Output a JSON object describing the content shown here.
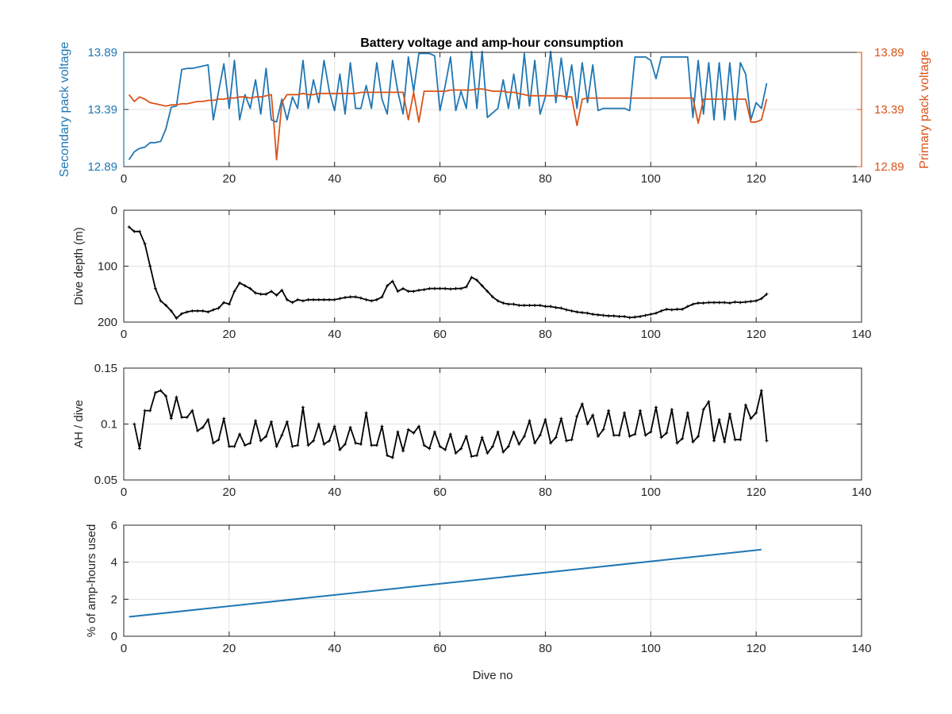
{
  "title": "Battery voltage and amp-hour consumption",
  "colors": {
    "blue": "#1f77b4",
    "orange": "#d95319",
    "black": "#000000",
    "grid": "#e1e1e1",
    "axis": "#262626"
  },
  "chart_data": [
    {
      "type": "line",
      "title": "Battery voltage and amp-hour consumption",
      "xlabel": "",
      "xlim": [
        0,
        140
      ],
      "xticks": [
        0,
        20,
        40,
        60,
        80,
        100,
        120,
        140
      ],
      "ylabel_left": "Secondary pack voltage",
      "ylabel_right": "Primary pack voltage",
      "ylim": [
        12.89,
        13.89
      ],
      "yticks": [
        12.89,
        13.39,
        13.89
      ],
      "grid": true,
      "series": [
        {
          "name": "Secondary pack voltage",
          "axis": "left",
          "color": "#1f77b4",
          "x": [
            1,
            2,
            3,
            4,
            5,
            6,
            7,
            8,
            9,
            10,
            11,
            12,
            13,
            14,
            15,
            16,
            17,
            18,
            19,
            20,
            21,
            22,
            23,
            24,
            25,
            26,
            27,
            28,
            29,
            30,
            31,
            32,
            33,
            34,
            35,
            36,
            37,
            38,
            39,
            40,
            41,
            42,
            43,
            44,
            45,
            46,
            47,
            48,
            49,
            50,
            51,
            52,
            53,
            54,
            55,
            56,
            57,
            58,
            59,
            60,
            61,
            62,
            63,
            64,
            65,
            66,
            67,
            68,
            69,
            70,
            71,
            72,
            73,
            74,
            75,
            76,
            77,
            78,
            79,
            80,
            81,
            82,
            83,
            84,
            85,
            86,
            87,
            88,
            89,
            90,
            91,
            92,
            93,
            94,
            95,
            96,
            97,
            98,
            99,
            100,
            101,
            102,
            103,
            104,
            105,
            106,
            107,
            108,
            109,
            110,
            111,
            112,
            113,
            114,
            115,
            116,
            117,
            118,
            119,
            120,
            121,
            122
          ],
          "y": [
            12.95,
            13.02,
            13.05,
            13.06,
            13.1,
            13.1,
            13.11,
            13.22,
            13.41,
            13.42,
            13.74,
            13.75,
            13.75,
            13.76,
            13.77,
            13.78,
            13.3,
            13.55,
            13.79,
            13.4,
            13.82,
            13.3,
            13.52,
            13.4,
            13.65,
            13.35,
            13.75,
            13.3,
            13.28,
            13.48,
            13.3,
            13.5,
            13.4,
            13.82,
            13.4,
            13.65,
            13.45,
            13.82,
            13.55,
            13.38,
            13.7,
            13.35,
            13.8,
            13.4,
            13.4,
            13.6,
            13.4,
            13.8,
            13.48,
            13.35,
            13.82,
            13.55,
            13.35,
            13.85,
            13.55,
            13.88,
            13.88,
            13.88,
            13.86,
            13.38,
            13.6,
            13.85,
            13.38,
            13.55,
            13.4,
            13.9,
            13.4,
            13.9,
            13.32,
            13.36,
            13.4,
            13.65,
            13.4,
            13.7,
            13.4,
            13.88,
            13.42,
            13.82,
            13.35,
            13.5,
            13.9,
            13.45,
            13.84,
            13.48,
            13.78,
            13.4,
            13.8,
            13.45,
            13.78,
            13.38,
            13.4,
            13.4,
            13.4,
            13.4,
            13.4,
            13.38,
            13.85,
            13.85,
            13.85,
            13.82,
            13.66,
            13.85,
            13.85,
            13.85,
            13.85,
            13.85,
            13.85,
            13.32,
            13.82,
            13.35,
            13.8,
            13.3,
            13.8,
            13.3,
            13.8,
            13.3,
            13.8,
            13.7,
            13.3,
            13.45,
            13.4,
            13.62
          ]
        },
        {
          "name": "Primary pack voltage",
          "axis": "right",
          "color": "#d95319",
          "x": [
            1,
            2,
            3,
            4,
            5,
            6,
            7,
            8,
            9,
            10,
            11,
            12,
            13,
            14,
            15,
            16,
            17,
            18,
            19,
            20,
            21,
            22,
            23,
            24,
            25,
            26,
            27,
            28,
            28.5,
            29,
            30,
            31,
            32,
            33,
            34,
            35,
            36,
            37,
            38,
            39,
            40,
            41,
            42,
            43,
            44,
            45,
            46,
            47,
            48,
            49,
            50,
            51,
            52,
            53,
            54,
            55,
            56,
            57,
            58,
            59,
            60,
            61,
            62,
            63,
            64,
            65,
            66,
            67,
            68,
            69,
            70,
            71,
            72,
            73,
            74,
            75,
            76,
            77,
            78,
            79,
            80,
            81,
            82,
            83,
            84,
            85,
            86,
            87,
            88,
            89,
            90,
            91,
            92,
            93,
            94,
            95,
            96,
            97,
            98,
            99,
            100,
            101,
            102,
            103,
            104,
            105,
            106,
            107,
            108,
            109,
            110,
            111,
            112,
            113,
            114,
            115,
            116,
            117,
            118,
            119,
            120,
            121,
            122
          ],
          "y": [
            13.52,
            13.46,
            13.5,
            13.48,
            13.45,
            13.44,
            13.43,
            13.42,
            13.43,
            13.43,
            13.44,
            13.44,
            13.45,
            13.46,
            13.46,
            13.47,
            13.47,
            13.48,
            13.48,
            13.49,
            13.49,
            13.5,
            13.5,
            13.49,
            13.5,
            13.5,
            13.51,
            13.52,
            13.26,
            12.95,
            13.45,
            13.52,
            13.52,
            13.52,
            13.53,
            13.52,
            13.52,
            13.53,
            13.53,
            13.53,
            13.53,
            13.53,
            13.53,
            13.53,
            13.53,
            13.54,
            13.54,
            13.54,
            13.54,
            13.54,
            13.54,
            13.54,
            13.54,
            13.54,
            13.3,
            13.54,
            13.28,
            13.55,
            13.55,
            13.55,
            13.55,
            13.55,
            13.56,
            13.56,
            13.56,
            13.56,
            13.56,
            13.57,
            13.57,
            13.56,
            13.55,
            13.55,
            13.55,
            13.54,
            13.54,
            13.53,
            13.52,
            13.51,
            13.51,
            13.51,
            13.51,
            13.51,
            13.51,
            13.51,
            13.5,
            13.5,
            13.25,
            13.48,
            13.49,
            13.49,
            13.49,
            13.49,
            13.49,
            13.49,
            13.49,
            13.49,
            13.49,
            13.49,
            13.49,
            13.49,
            13.49,
            13.49,
            13.49,
            13.49,
            13.49,
            13.49,
            13.49,
            13.49,
            13.49,
            13.27,
            13.48,
            13.48,
            13.48,
            13.48,
            13.48,
            13.48,
            13.48,
            13.48,
            13.48,
            13.28,
            13.28,
            13.3,
            13.48
          ]
        }
      ]
    },
    {
      "type": "line",
      "xlabel": "",
      "ylabel": "Dive depth (m)",
      "xlim": [
        0,
        140
      ],
      "xticks": [
        0,
        20,
        40,
        60,
        80,
        100,
        120,
        140
      ],
      "ylim": [
        0,
        200
      ],
      "yticks": [
        0,
        100,
        200
      ],
      "y_reversed": true,
      "grid": true,
      "series": [
        {
          "color": "#000000",
          "markers": true,
          "x": [
            1,
            2,
            3,
            4,
            5,
            6,
            7,
            8,
            9,
            10,
            11,
            12,
            13,
            14,
            15,
            16,
            17,
            18,
            19,
            20,
            21,
            22,
            23,
            24,
            25,
            26,
            27,
            28,
            29,
            30,
            31,
            32,
            33,
            34,
            35,
            36,
            37,
            38,
            39,
            40,
            41,
            42,
            43,
            44,
            45,
            46,
            47,
            48,
            49,
            50,
            51,
            52,
            53,
            54,
            55,
            56,
            57,
            58,
            59,
            60,
            61,
            62,
            63,
            64,
            65,
            66,
            67,
            68,
            69,
            70,
            71,
            72,
            73,
            74,
            75,
            76,
            77,
            78,
            79,
            80,
            81,
            82,
            83,
            84,
            85,
            86,
            87,
            88,
            89,
            90,
            91,
            92,
            93,
            94,
            95,
            96,
            97,
            98,
            99,
            100,
            101,
            102,
            103,
            104,
            105,
            106,
            107,
            108,
            109,
            110,
            111,
            112,
            113,
            114,
            115,
            116,
            117,
            118,
            119,
            120,
            121,
            122
          ],
          "y": [
            30,
            38,
            38,
            60,
            100,
            140,
            162,
            170,
            180,
            193,
            185,
            182,
            180,
            180,
            180,
            182,
            178,
            175,
            165,
            168,
            145,
            130,
            135,
            140,
            148,
            150,
            150,
            145,
            152,
            143,
            160,
            165,
            160,
            162,
            160,
            160,
            160,
            160,
            160,
            160,
            158,
            156,
            155,
            155,
            157,
            160,
            162,
            160,
            155,
            135,
            127,
            145,
            140,
            145,
            145,
            143,
            142,
            140,
            140,
            140,
            140,
            141,
            140,
            140,
            137,
            120,
            125,
            135,
            145,
            155,
            162,
            166,
            168,
            168,
            170,
            170,
            170,
            170,
            170,
            172,
            172,
            174,
            175,
            178,
            180,
            182,
            183,
            184,
            186,
            187,
            188,
            189,
            189,
            190,
            190,
            192,
            191,
            190,
            188,
            186,
            184,
            180,
            177,
            178,
            177,
            177,
            172,
            168,
            166,
            166,
            165,
            165,
            165,
            165,
            166,
            164,
            165,
            164,
            163,
            162,
            158,
            150
          ]
        }
      ]
    },
    {
      "type": "line",
      "xlabel": "",
      "ylabel": "AH / dive",
      "xlim": [
        0,
        140
      ],
      "xticks": [
        0,
        20,
        40,
        60,
        80,
        100,
        120,
        140
      ],
      "ylim": [
        0.05,
        0.15
      ],
      "yticks": [
        0.05,
        0.1,
        0.15
      ],
      "grid": true,
      "series": [
        {
          "color": "#000000",
          "markers": true,
          "x": [
            2,
            3,
            4,
            5,
            6,
            7,
            8,
            9,
            10,
            11,
            12,
            13,
            14,
            15,
            16,
            17,
            18,
            19,
            20,
            21,
            22,
            23,
            24,
            25,
            26,
            27,
            28,
            29,
            30,
            31,
            32,
            33,
            34,
            35,
            36,
            37,
            38,
            39,
            40,
            41,
            42,
            43,
            44,
            45,
            46,
            47,
            48,
            49,
            50,
            51,
            52,
            53,
            54,
            55,
            56,
            57,
            58,
            59,
            60,
            61,
            62,
            63,
            64,
            65,
            66,
            67,
            68,
            69,
            70,
            71,
            72,
            73,
            74,
            75,
            76,
            77,
            78,
            79,
            80,
            81,
            82,
            83,
            84,
            85,
            86,
            87,
            88,
            89,
            90,
            91,
            92,
            93,
            94,
            95,
            96,
            97,
            98,
            99,
            100,
            101,
            102,
            103,
            104,
            105,
            106,
            107,
            108,
            109,
            110,
            111,
            112,
            113,
            114,
            115,
            116,
            117,
            118,
            119,
            120,
            121,
            122
          ],
          "y": [
            0.1,
            0.078,
            0.112,
            0.112,
            0.128,
            0.13,
            0.125,
            0.105,
            0.124,
            0.106,
            0.106,
            0.112,
            0.094,
            0.097,
            0.104,
            0.083,
            0.086,
            0.105,
            0.08,
            0.08,
            0.091,
            0.081,
            0.083,
            0.103,
            0.085,
            0.089,
            0.102,
            0.08,
            0.09,
            0.102,
            0.08,
            0.081,
            0.115,
            0.081,
            0.085,
            0.1,
            0.082,
            0.085,
            0.098,
            0.077,
            0.082,
            0.097,
            0.083,
            0.082,
            0.11,
            0.081,
            0.081,
            0.098,
            0.072,
            0.07,
            0.093,
            0.076,
            0.095,
            0.092,
            0.098,
            0.081,
            0.078,
            0.093,
            0.08,
            0.077,
            0.091,
            0.074,
            0.078,
            0.089,
            0.071,
            0.072,
            0.088,
            0.074,
            0.08,
            0.093,
            0.075,
            0.08,
            0.093,
            0.082,
            0.089,
            0.103,
            0.083,
            0.09,
            0.104,
            0.083,
            0.088,
            0.105,
            0.085,
            0.086,
            0.107,
            0.118,
            0.1,
            0.108,
            0.089,
            0.095,
            0.112,
            0.09,
            0.09,
            0.11,
            0.089,
            0.091,
            0.112,
            0.09,
            0.093,
            0.115,
            0.088,
            0.092,
            0.113,
            0.083,
            0.087,
            0.11,
            0.084,
            0.089,
            0.113,
            0.12,
            0.085,
            0.104,
            0.084,
            0.109,
            0.086,
            0.086,
            0.117,
            0.105,
            0.11,
            0.13,
            0.085
          ]
        }
      ]
    },
    {
      "type": "line",
      "xlabel": "Dive no",
      "ylabel": "% of amp-hours used",
      "xlim": [
        0,
        140
      ],
      "xticks": [
        0,
        20,
        40,
        60,
        80,
        100,
        120,
        140
      ],
      "ylim": [
        0,
        6
      ],
      "yticks": [
        0,
        2,
        4,
        6
      ],
      "grid": true,
      "series": [
        {
          "color": "#1f77b4",
          "x": [
            1,
            121
          ],
          "y": [
            1.05,
            4.68
          ]
        }
      ]
    }
  ]
}
